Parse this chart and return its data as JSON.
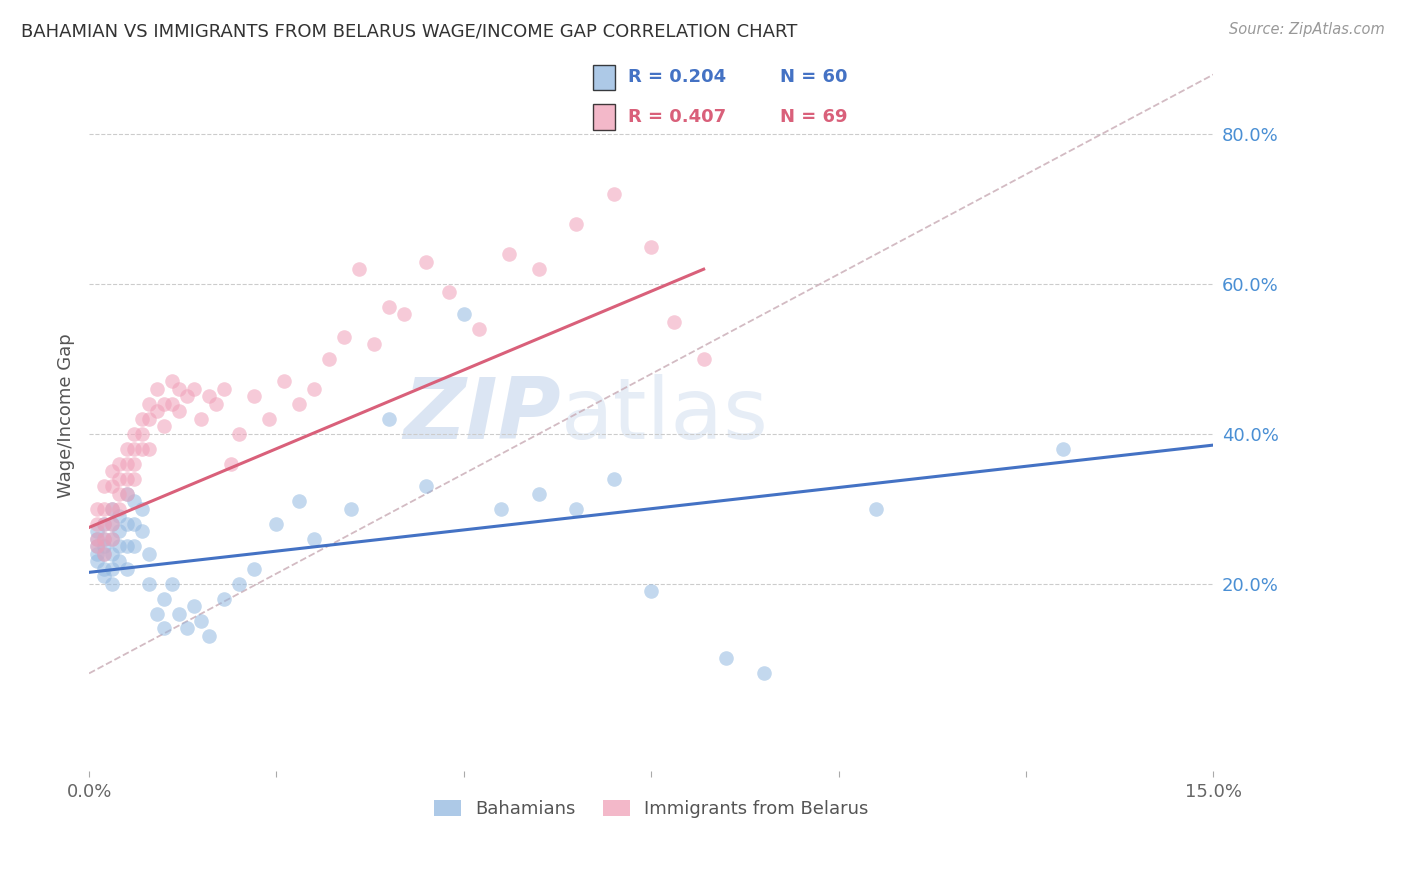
{
  "title": "BAHAMIAN VS IMMIGRANTS FROM BELARUS WAGE/INCOME GAP CORRELATION CHART",
  "source": "Source: ZipAtlas.com",
  "ylabel": "Wage/Income Gap",
  "xlim": [
    0.0,
    0.15
  ],
  "ylim": [
    -0.05,
    0.9
  ],
  "yticks": [
    0.2,
    0.4,
    0.6,
    0.8
  ],
  "ytick_labels": [
    "20.0%",
    "40.0%",
    "60.0%",
    "80.0%"
  ],
  "bahamians_color": "#92b8e0",
  "belarus_color": "#f0a0b8",
  "bahamians_line_color": "#4472c4",
  "belarus_line_color": "#d9607a",
  "ref_line_color": "#c8aab4",
  "watermark_zip": "ZIP",
  "watermark_atlas": "atlas",
  "background_color": "#ffffff",
  "grid_color": "#cccccc",
  "bahamians_x": [
    0.001,
    0.001,
    0.001,
    0.001,
    0.001,
    0.002,
    0.002,
    0.002,
    0.002,
    0.002,
    0.002,
    0.003,
    0.003,
    0.003,
    0.003,
    0.003,
    0.003,
    0.004,
    0.004,
    0.004,
    0.004,
    0.005,
    0.005,
    0.005,
    0.005,
    0.006,
    0.006,
    0.006,
    0.007,
    0.007,
    0.008,
    0.008,
    0.009,
    0.01,
    0.01,
    0.011,
    0.012,
    0.013,
    0.014,
    0.015,
    0.016,
    0.018,
    0.02,
    0.022,
    0.025,
    0.028,
    0.03,
    0.035,
    0.04,
    0.045,
    0.05,
    0.055,
    0.06,
    0.065,
    0.07,
    0.075,
    0.085,
    0.09,
    0.105,
    0.13
  ],
  "bahamians_y": [
    0.27,
    0.26,
    0.25,
    0.24,
    0.23,
    0.28,
    0.26,
    0.25,
    0.24,
    0.22,
    0.21,
    0.3,
    0.28,
    0.26,
    0.24,
    0.22,
    0.2,
    0.29,
    0.27,
    0.25,
    0.23,
    0.32,
    0.28,
    0.25,
    0.22,
    0.31,
    0.28,
    0.25,
    0.3,
    0.27,
    0.24,
    0.2,
    0.16,
    0.18,
    0.14,
    0.2,
    0.16,
    0.14,
    0.17,
    0.15,
    0.13,
    0.18,
    0.2,
    0.22,
    0.28,
    0.31,
    0.26,
    0.3,
    0.42,
    0.33,
    0.56,
    0.3,
    0.32,
    0.3,
    0.34,
    0.19,
    0.1,
    0.08,
    0.3,
    0.38
  ],
  "belarus_x": [
    0.001,
    0.001,
    0.001,
    0.001,
    0.002,
    0.002,
    0.002,
    0.002,
    0.002,
    0.003,
    0.003,
    0.003,
    0.003,
    0.003,
    0.004,
    0.004,
    0.004,
    0.004,
    0.005,
    0.005,
    0.005,
    0.005,
    0.006,
    0.006,
    0.006,
    0.006,
    0.007,
    0.007,
    0.007,
    0.008,
    0.008,
    0.008,
    0.009,
    0.009,
    0.01,
    0.01,
    0.011,
    0.011,
    0.012,
    0.012,
    0.013,
    0.014,
    0.015,
    0.016,
    0.017,
    0.018,
    0.019,
    0.02,
    0.022,
    0.024,
    0.026,
    0.028,
    0.03,
    0.032,
    0.034,
    0.036,
    0.038,
    0.04,
    0.042,
    0.045,
    0.048,
    0.052,
    0.056,
    0.06,
    0.065,
    0.07,
    0.075,
    0.078,
    0.082
  ],
  "belarus_y": [
    0.3,
    0.28,
    0.26,
    0.25,
    0.33,
    0.3,
    0.28,
    0.26,
    0.24,
    0.35,
    0.33,
    0.3,
    0.28,
    0.26,
    0.36,
    0.34,
    0.32,
    0.3,
    0.38,
    0.36,
    0.34,
    0.32,
    0.4,
    0.38,
    0.36,
    0.34,
    0.42,
    0.4,
    0.38,
    0.44,
    0.42,
    0.38,
    0.46,
    0.43,
    0.44,
    0.41,
    0.47,
    0.44,
    0.46,
    0.43,
    0.45,
    0.46,
    0.42,
    0.45,
    0.44,
    0.46,
    0.36,
    0.4,
    0.45,
    0.42,
    0.47,
    0.44,
    0.46,
    0.5,
    0.53,
    0.62,
    0.52,
    0.57,
    0.56,
    0.63,
    0.59,
    0.54,
    0.64,
    0.62,
    0.68,
    0.72,
    0.65,
    0.55,
    0.5
  ],
  "bah_line_x": [
    0.0,
    0.15
  ],
  "bah_line_y": [
    0.215,
    0.385
  ],
  "bel_line_x": [
    0.0,
    0.082
  ],
  "bel_line_y": [
    0.275,
    0.62
  ],
  "ref_line_x": [
    0.0,
    0.15
  ],
  "ref_line_y": [
    0.08,
    0.88
  ]
}
